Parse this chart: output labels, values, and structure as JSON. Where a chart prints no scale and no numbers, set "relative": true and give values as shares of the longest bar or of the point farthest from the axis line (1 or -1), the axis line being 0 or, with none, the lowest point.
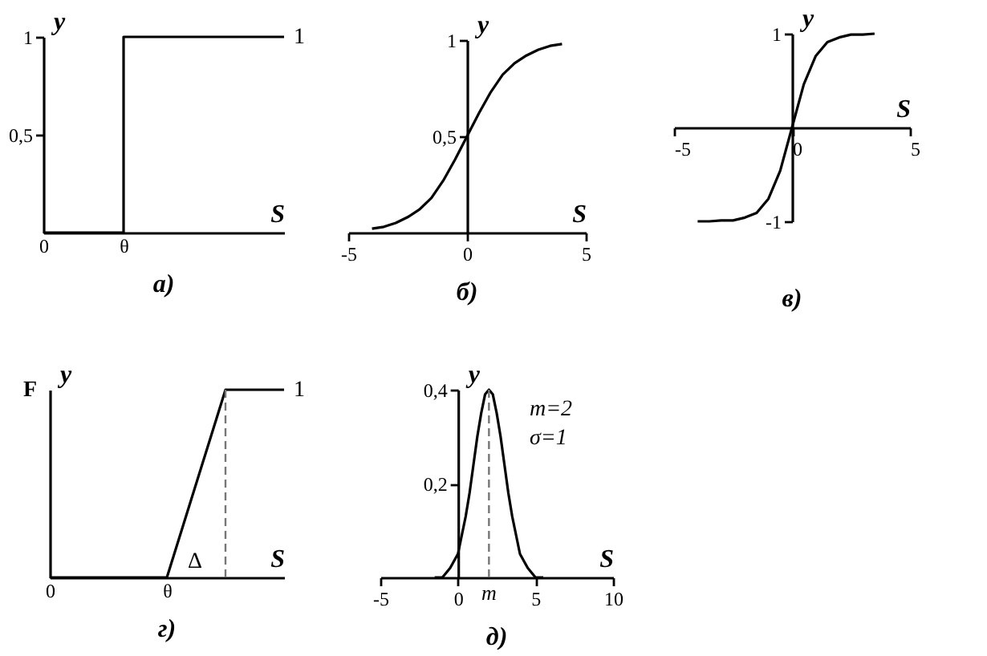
{
  "chart_data": [
    {
      "type": "step",
      "title": "а)",
      "xlabel": "S",
      "ylabel": "y",
      "color": "#000000",
      "categories": [
        "0",
        null,
        "θ",
        null,
        null,
        null,
        null
      ],
      "values": [
        0,
        0,
        1,
        1,
        1,
        1,
        1
      ],
      "ylim": [
        0,
        1
      ],
      "yticks": [
        {
          "value": 0.5,
          "label": "0,5"
        },
        {
          "value": 1,
          "label": "1"
        }
      ],
      "annotations": [
        "1"
      ]
    },
    {
      "type": "line",
      "title": "б)",
      "xlabel": "S",
      "ylabel": "y",
      "color": "#000000",
      "x": [
        -4,
        -3.5,
        -3,
        -2.5,
        -2,
        -1.5,
        -1,
        -0.5,
        0,
        0.5,
        1,
        1.5,
        2,
        2.5,
        3,
        3.5,
        4
      ],
      "values": [
        0.02,
        0.03,
        0.05,
        0.08,
        0.12,
        0.18,
        0.27,
        0.38,
        0.5,
        0.62,
        0.73,
        0.82,
        0.88,
        0.92,
        0.95,
        0.97,
        0.98
      ],
      "xlim": [
        -5,
        5
      ],
      "ylim": [
        0,
        1
      ],
      "xticks": [
        -5,
        0,
        5
      ],
      "yticks": [
        {
          "value": 0.5,
          "label": "0,5"
        },
        {
          "value": 1,
          "label": "1"
        }
      ]
    },
    {
      "type": "line",
      "title": "в)",
      "xlabel": "S",
      "ylabel": "y",
      "color": "#000000",
      "x": [
        -4,
        -3.5,
        -3,
        -2.5,
        -2,
        -1.5,
        -1,
        -0.5,
        0,
        0.5,
        1,
        1.5,
        2,
        2.5,
        3,
        3.5
      ],
      "values": [
        -1,
        -1,
        -0.99,
        -0.99,
        -0.96,
        -0.91,
        -0.76,
        -0.46,
        0,
        0.46,
        0.76,
        0.91,
        0.96,
        0.99,
        0.99,
        1
      ],
      "xlim": [
        -5,
        5
      ],
      "ylim": [
        -1,
        1
      ],
      "xticks": [
        -5,
        0,
        5
      ],
      "yticks": [
        -1,
        1
      ]
    },
    {
      "type": "line",
      "title": "г)",
      "xlabel": "S",
      "ylabel": "y",
      "color": "#000000",
      "relative": true,
      "categories": [
        "0",
        null,
        "θ",
        null,
        null
      ],
      "values": [
        0,
        0,
        0,
        1,
        1
      ],
      "annotations": [
        "1",
        "F",
        "Δ"
      ]
    },
    {
      "type": "line",
      "title": "д)",
      "xlabel": "S",
      "ylabel": "y",
      "color": "#000000",
      "x": [
        -1.5,
        -1,
        -0.5,
        0,
        0.5,
        0.75,
        1,
        1.25,
        1.5,
        1.75,
        2,
        2.25,
        2.5,
        2.75,
        3,
        3.25,
        3.5,
        4,
        4.5,
        5,
        5.5
      ],
      "values": [
        0,
        0,
        0.02,
        0.05,
        0.13,
        0.18,
        0.24,
        0.3,
        0.35,
        0.39,
        0.4,
        0.39,
        0.35,
        0.3,
        0.24,
        0.18,
        0.13,
        0.05,
        0.02,
        0,
        0
      ],
      "xlim": [
        -5,
        10
      ],
      "ylim": [
        0,
        0.4
      ],
      "xticks": [
        -5,
        0,
        5,
        10
      ],
      "yticks": [
        {
          "value": 0.2,
          "label": "0,2"
        },
        {
          "value": 0.4,
          "label": "0,4"
        }
      ],
      "ref_lines": [
        {
          "axis": "x",
          "value": 2,
          "label": "m",
          "color": "#777777",
          "line_style": "dashed"
        }
      ],
      "annotations": [
        "m=2",
        "σ=1"
      ]
    }
  ]
}
